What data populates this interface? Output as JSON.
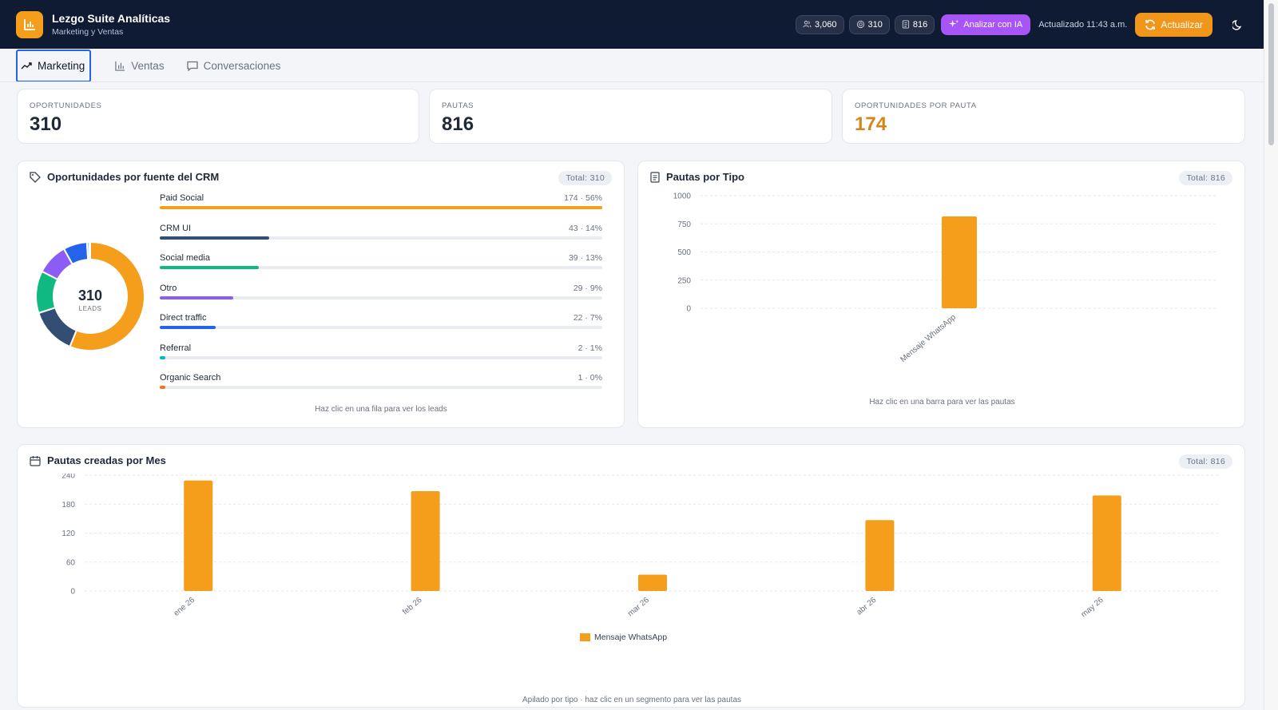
{
  "header": {
    "title": "Lezgo Suite Analíticas",
    "subtitle": "Marketing y Ventas",
    "stat_contacts": "3,060",
    "stat_opportunities": "310",
    "stat_pautas": "816",
    "ai_label": "Analizar con IA",
    "updated_label": "Actualizado 11:43 a.m.",
    "refresh_label": "Actualizar",
    "brand_color": "#f59e1c",
    "ai_color": "#a855f7"
  },
  "tabs": [
    {
      "label": "Marketing",
      "active": true
    },
    {
      "label": "Ventas",
      "active": false
    },
    {
      "label": "Conversaciones",
      "active": false
    }
  ],
  "kpis": [
    {
      "label": "OPORTUNIDADES",
      "value": "310"
    },
    {
      "label": "PAUTAS",
      "value": "816"
    },
    {
      "label": "OPORTUNIDADES POR PAUTA",
      "value": "174"
    }
  ],
  "crm_sources": {
    "title": "Oportunidades por fuente del CRM",
    "total_label": "Total: 310",
    "donut_value": "310",
    "donut_caption": "LEADS",
    "hint": "Haz clic en una fila para ver los leads",
    "rows": [
      {
        "name": "Paid Social",
        "value_label": "174 · 56%",
        "count": 174,
        "percent": 56,
        "color": "#f59e1c"
      },
      {
        "name": "CRM UI",
        "value_label": "43 · 14%",
        "count": 43,
        "percent": 14,
        "color": "#334e75"
      },
      {
        "name": "Social media",
        "value_label": "39 · 13%",
        "count": 39,
        "percent": 13,
        "color": "#10b981"
      },
      {
        "name": "Otro",
        "value_label": "29 · 9%",
        "count": 29,
        "percent": 9,
        "color": "#8b5cf6"
      },
      {
        "name": "Direct traffic",
        "value_label": "22 · 7%",
        "count": 22,
        "percent": 7,
        "color": "#2563eb"
      },
      {
        "name": "Referral",
        "value_label": "2 · 1%",
        "count": 2,
        "percent": 1,
        "color": "#06b6d4"
      },
      {
        "name": "Organic Search",
        "value_label": "1 · 0%",
        "count": 1,
        "percent": 0,
        "color": "#f97316"
      }
    ]
  },
  "pautas_tipo": {
    "title": "Pautas por Tipo",
    "total_label": "Total: 816",
    "hint": "Haz clic en una barra para ver las pautas"
  },
  "pautas_mes": {
    "title": "Pautas creadas por Mes",
    "total_label": "Total: 816",
    "hint": "Apilado por tipo · haz clic en un segmento para ver las pautas"
  },
  "chart_data": [
    {
      "type": "pie",
      "title": "Oportunidades por fuente del CRM",
      "categories": [
        "Paid Social",
        "CRM UI",
        "Social media",
        "Otro",
        "Direct traffic",
        "Referral",
        "Organic Search"
      ],
      "values": [
        174,
        43,
        39,
        29,
        22,
        2,
        1
      ],
      "colors": [
        "#f59e1c",
        "#334e75",
        "#10b981",
        "#8b5cf6",
        "#2563eb",
        "#06b6d4",
        "#f97316"
      ]
    },
    {
      "type": "bar",
      "title": "Pautas por Tipo",
      "categories": [
        "Mensaje WhatsApp"
      ],
      "values": [
        816
      ],
      "yticks": [
        0,
        250,
        500,
        750,
        1000
      ],
      "ylim": [
        0,
        1000
      ],
      "grid": true,
      "color": "#f59e1c"
    },
    {
      "type": "bar",
      "title": "Pautas creadas por Mes",
      "categories": [
        "ene 26",
        "feb 26",
        "mar 26",
        "abr 26",
        "may 26"
      ],
      "series": [
        {
          "name": "Mensaje WhatsApp",
          "values": [
            229,
            207,
            34,
            147,
            198
          ]
        }
      ],
      "yticks": [
        0,
        60,
        120,
        180,
        240
      ],
      "ylim": [
        0,
        240
      ],
      "grid": true,
      "legend": "bottom",
      "color": "#f59e1c"
    }
  ]
}
